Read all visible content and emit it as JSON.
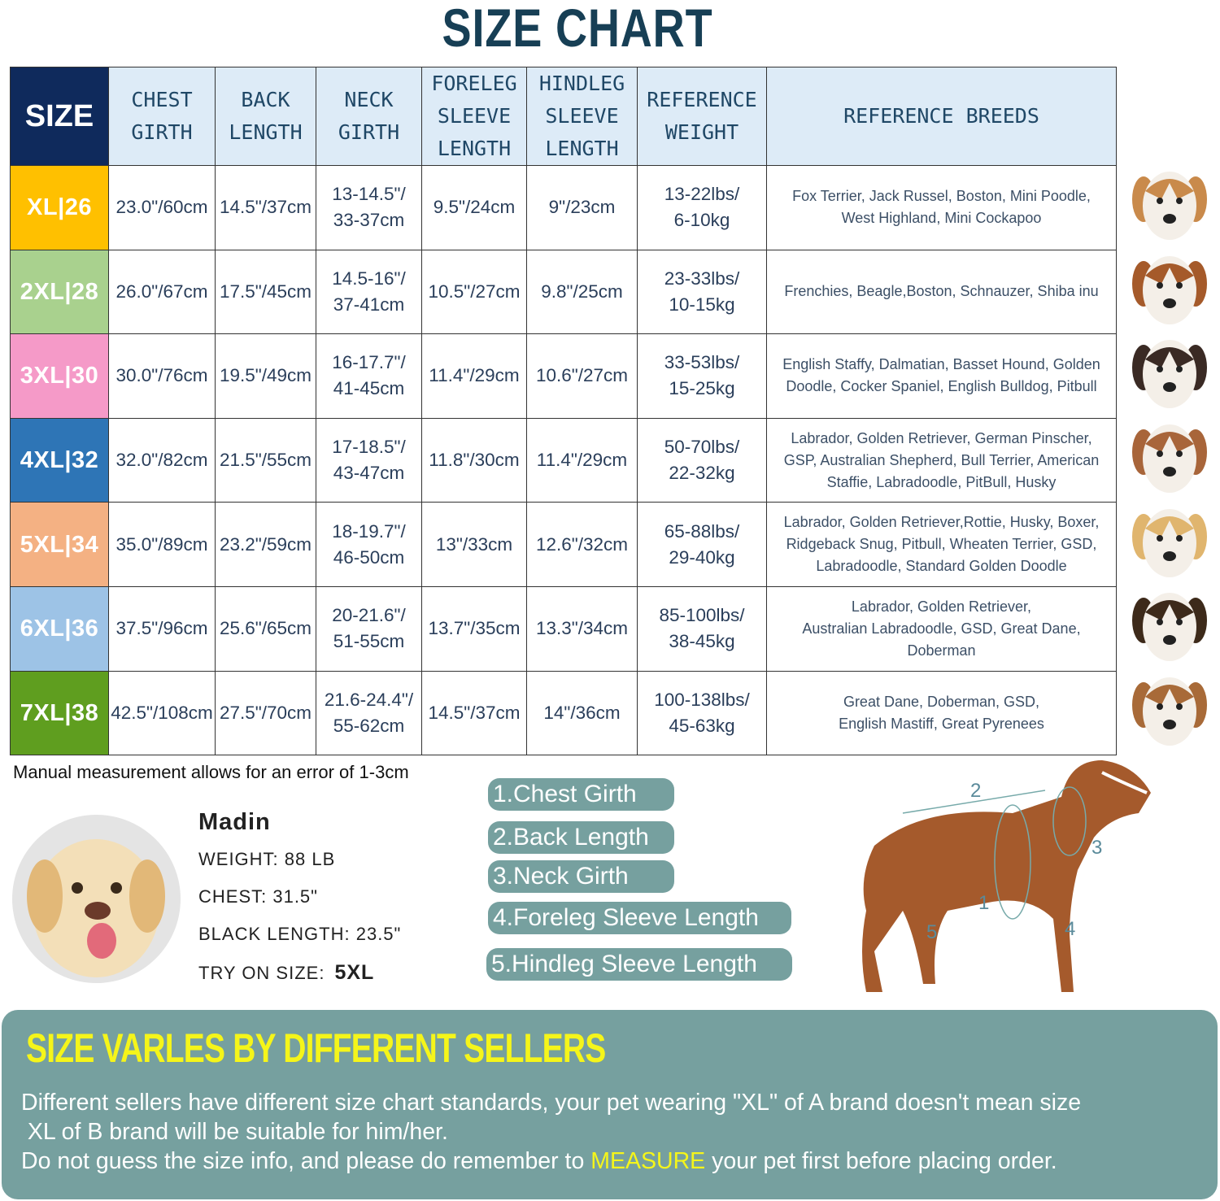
{
  "title": "SIZE CHART",
  "headers": [
    "SIZE",
    "CHEST\nGIRTH",
    "BACK\nLENGTH",
    "NECK\nGIRTH",
    "FORELEG\nSLEEVE\nLENGTH",
    "HINDLEG\nSLEEVE\nLENGTH",
    "REFERENCE\nWEIGHT",
    "REFERENCE  BREEDS"
  ],
  "rows": [
    {
      "size": "XL|26",
      "color": "#ffc000",
      "chest": "23.0\"/60cm",
      "back": "14.5\"/37cm",
      "neck": "13-14.5\"/\n33-37cm",
      "foreleg": "9.5\"/24cm",
      "hindleg": "9\"/23cm",
      "weight": "13-22lbs/\n6-10kg",
      "breeds": "Fox Terrier, Jack Russel, Boston, Mini Poodle,\nWest Highland, Mini Cockapoo"
    },
    {
      "size": "2XL|28",
      "color": "#a9d18e",
      "chest": "26.0\"/67cm",
      "back": "17.5\"/45cm",
      "neck": "14.5-16\"/\n37-41cm",
      "foreleg": "10.5\"/27cm",
      "hindleg": "9.8\"/25cm",
      "weight": "23-33lbs/\n10-15kg",
      "breeds": "Frenchies, Beagle,Boston, Schnauzer, Shiba inu"
    },
    {
      "size": "3XL|30",
      "color": "#f59ac8",
      "chest": "30.0\"/76cm",
      "back": "19.5\"/49cm",
      "neck": "16-17.7\"/\n41-45cm",
      "foreleg": "11.4\"/29cm",
      "hindleg": "10.6\"/27cm",
      "weight": "33-53lbs/\n15-25kg",
      "breeds": "English Staffy, Dalmatian, Basset Hound, Golden\nDoodle, Cocker Spaniel, English Bulldog, Pitbull"
    },
    {
      "size": "4XL|32",
      "color": "#2e75b6",
      "chest": "32.0\"/82cm",
      "back": "21.5\"/55cm",
      "neck": "17-18.5\"/\n43-47cm",
      "foreleg": "11.8\"/30cm",
      "hindleg": "11.4\"/29cm",
      "weight": "50-70lbs/\n22-32kg",
      "breeds": "Labrador, Golden Retriever, German Pinscher,\nGSP, Australian Shepherd, Bull Terrier, American\nStaffie, Labradoodle, PitBull, Husky"
    },
    {
      "size": "5XL|34",
      "color": "#f4b183",
      "chest": "35.0\"/89cm",
      "back": "23.2\"/59cm",
      "neck": "18-19.7\"/\n46-50cm",
      "foreleg": "13\"/33cm",
      "hindleg": "12.6\"/32cm",
      "weight": "65-88lbs/\n29-40kg",
      "breeds": "Labrador, Golden Retriever,Rottie, Husky, Boxer,\nRidgeback Snug, Pitbull, Wheaten Terrier, GSD,\nLabradoodle,  Standard Golden Doodle"
    },
    {
      "size": "6XL|36",
      "color": "#9dc3e6",
      "chest": "37.5\"/96cm",
      "back": "25.6\"/65cm",
      "neck": "20-21.6\"/\n51-55cm",
      "foreleg": "13.7\"/35cm",
      "hindleg": "13.3\"/34cm",
      "weight": "85-100lbs/\n38-45kg",
      "breeds": "Labrador, Golden Retriever,\nAustralian Labradoodle, GSD, Great Dane,\nDoberman"
    },
    {
      "size": "7XL|38",
      "color": "#5f9e1f",
      "chest": "42.5\"/108cm",
      "back": "27.5\"/70cm",
      "neck": "21.6-24.4\"/\n55-62cm",
      "foreleg": "14.5\"/37cm",
      "hindleg": "14\"/36cm",
      "weight": "100-138lbs/\n45-63kg",
      "breeds": "Great Dane, Doberman, GSD,\nEnglish Mastiff, Great Pyrenees"
    }
  ],
  "dog_colors": [
    "#c98a4b",
    "#a55a2a",
    "#3a2a24",
    "#a8653a",
    "#e0b56e",
    "#3d2a1a",
    "#a86a38"
  ],
  "note": "Manual measurement allows for an error of 1-3cm",
  "example": {
    "name": "Madin",
    "weight": "WEIGHT: 88 LB",
    "chest": "CHEST: 31.5\"",
    "length": "BLACK LENGTH: 23.5\"",
    "try_label": "TRY ON SIZE:",
    "try_size": "5XL"
  },
  "measures": [
    "1.Chest Girth",
    "2.Back Length",
    "3.Neck Girth",
    "4.Foreleg Sleeve Length",
    "5.Hindleg Sleeve Length"
  ],
  "diagram_labels": [
    "1",
    "2",
    "3",
    "4",
    "5"
  ],
  "banner": {
    "title": "SIZE VARLES BY DIFFERENT SELLERS",
    "line1": "Different sellers have different size chart standards, your pet wearing \"XL\" of A brand doesn't mean size\n XL of B brand will be suitable for him/her.",
    "line2a": "Do not guess the size info, and please do remember to ",
    "line2b": "MEASURE",
    "line2c": " your pet first before placing order."
  },
  "colors": {
    "title": "#173f55",
    "header_bg": "#ddebf7",
    "size_header": "#0f2a5c",
    "banner": "#76a09f",
    "highlight": "#f5f51a"
  }
}
